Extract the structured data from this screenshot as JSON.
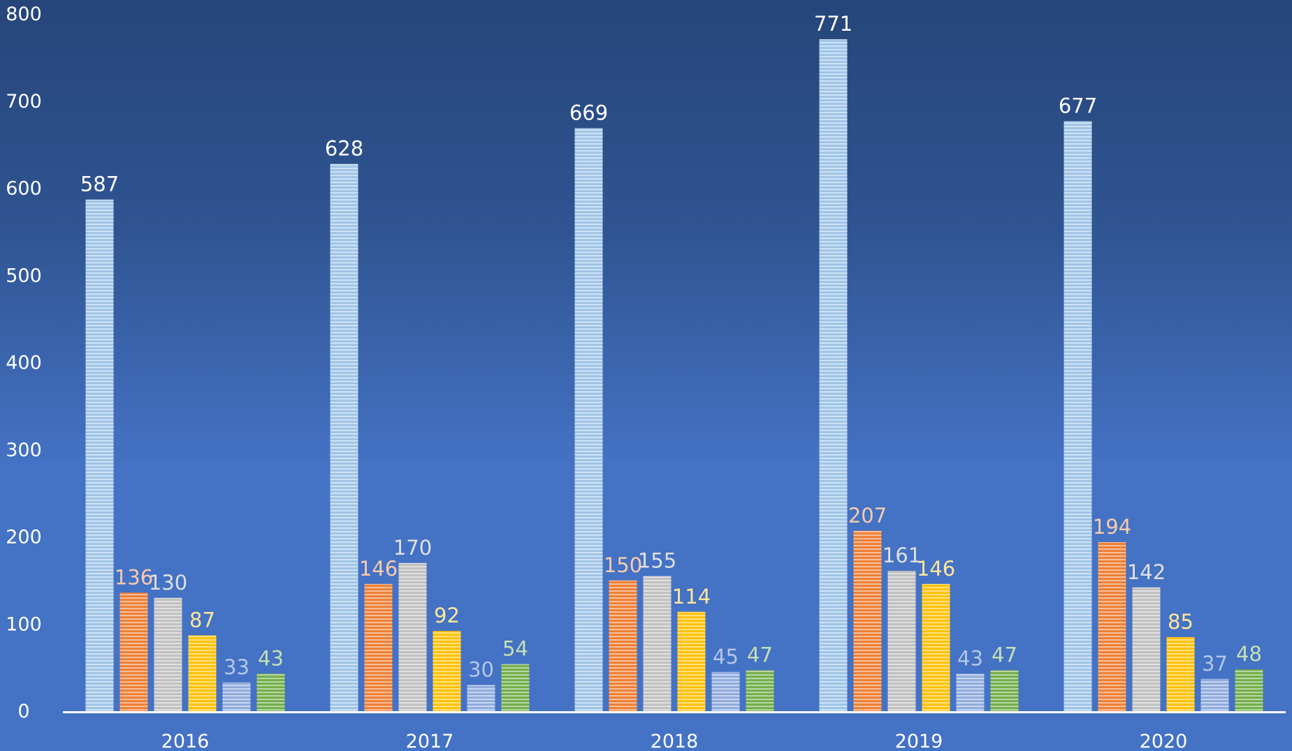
{
  "chart_data": {
    "type": "bar",
    "title": "",
    "xlabel": "",
    "ylabel": "",
    "ylim": [
      0,
      800
    ],
    "yticks": [
      "0",
      "100",
      "200",
      "300",
      "400",
      "500",
      "600",
      "700",
      "800"
    ],
    "grid": false,
    "legend": "none",
    "categories": [
      "2016",
      "2017",
      "2018",
      "2019",
      "2020"
    ],
    "series": [
      {
        "values": [
          587,
          628,
          669,
          771,
          677
        ],
        "color": "#9dc3e6",
        "label_color": "#ffffff"
      },
      {
        "values": [
          136,
          146,
          150,
          207,
          194
        ],
        "color": "#ed7d31",
        "label_color": "#f8cbad"
      },
      {
        "values": [
          130,
          170,
          155,
          161,
          142
        ],
        "color": "#bfbfbf",
        "label_color": "#e0e0e0"
      },
      {
        "values": [
          87,
          92,
          114,
          146,
          85
        ],
        "color": "#ffc000",
        "label_color": "#ffe699"
      },
      {
        "values": [
          33,
          30,
          45,
          43,
          37
        ],
        "color": "#8faadc",
        "label_color": "#b4c7e7"
      },
      {
        "values": [
          43,
          54,
          47,
          47,
          48
        ],
        "color": "#70ad47",
        "label_color": "#c5e0b4"
      }
    ]
  }
}
